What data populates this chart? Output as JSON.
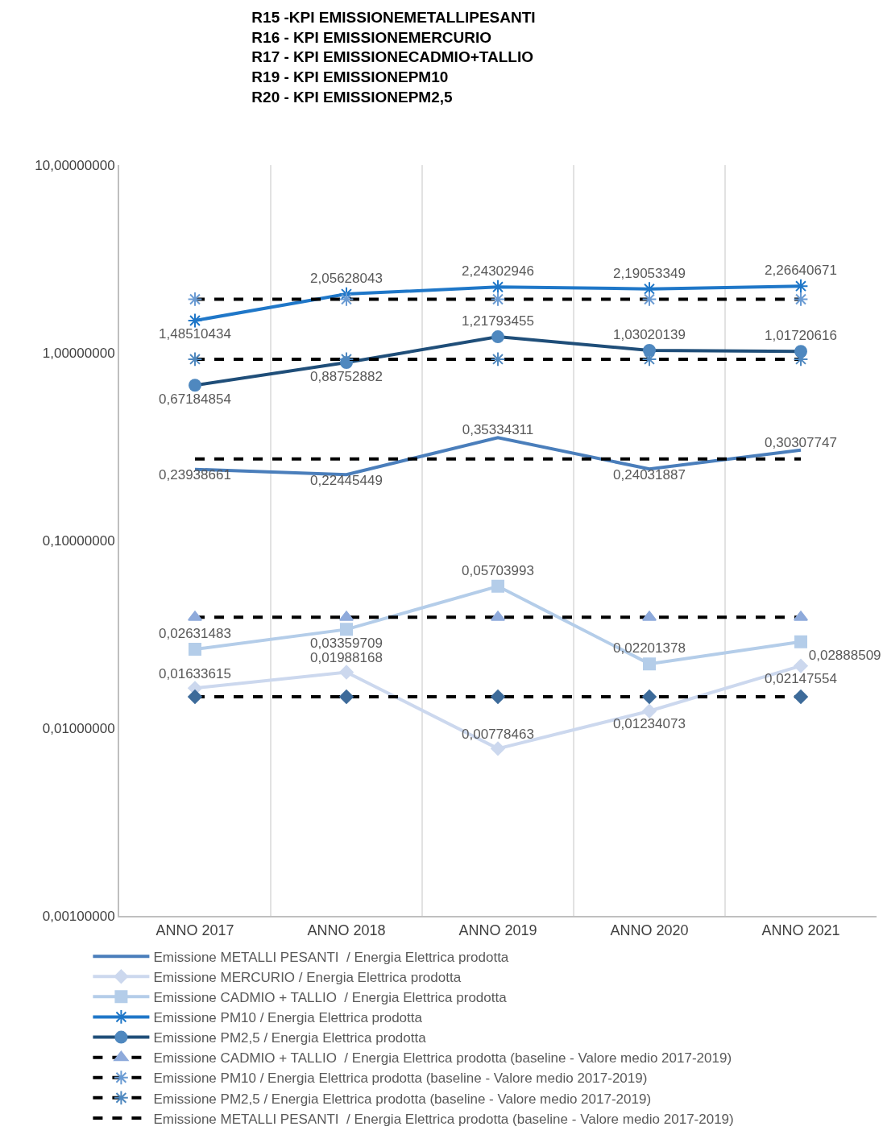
{
  "chart_data": {
    "type": "line",
    "title": "R15 -KPI EMISSIONEMETALLIPESANTI\nR16 - KPI EMISSIONEMERCURIO\nR17 - KPI EMISSIONECADMIO+TALLIO\nR19 - KPI EMISSIONEPM10\nR20 - KPI EMISSIONEPM2,5",
    "categories": [
      "ANNO 2017",
      "ANNO 2018",
      "ANNO 2019",
      "ANNO 2020",
      "ANNO 2021"
    ],
    "series": [
      {
        "name": "Emissione METALLI PESANTI  / Energia Elettrica prodotta",
        "color": "#4a7ebb",
        "marker": "none",
        "line_style": "solid",
        "values": [
          0.23938661,
          0.22445449,
          0.35334311,
          0.24031887,
          0.30307747
        ],
        "value_labels": [
          "0,23938661",
          "0,22445449",
          "0,35334311",
          "0,24031887",
          "0,30307747"
        ]
      },
      {
        "name": "Emissione MERCURIO / Energia Elettrica prodotta",
        "color": "#ccd8ee",
        "marker": "diamond",
        "line_style": "solid",
        "values": [
          0.01633615,
          0.01988168,
          0.00778463,
          0.01234073,
          0.02147554
        ],
        "value_labels": [
          "0,01633615",
          "0,01988168",
          "0,00778463",
          "0,01234073",
          "0,02147554"
        ]
      },
      {
        "name": "Emissione CADMIO + TALLIO  / Energia Elettrica prodotta",
        "color": "#b4cde9",
        "marker": "square",
        "line_style": "solid",
        "values": [
          0.02631483,
          0.03359709,
          0.05703993,
          0.02201378,
          0.02888509
        ],
        "value_labels": [
          "0,02631483",
          "0,03359709",
          "0,05703993",
          "0,02201378",
          "0,02888509"
        ]
      },
      {
        "name": "Emissione PM10 / Energia Elettrica prodotta",
        "color": "#1f77c8",
        "marker": "cross",
        "line_style": "solid",
        "values": [
          1.48510434,
          2.05628043,
          2.24302946,
          2.19053349,
          2.26640671
        ],
        "value_labels": [
          "1,48510434",
          "2,05628043",
          "2,24302946",
          "2,19053349",
          "2,26640671"
        ]
      },
      {
        "name": "Emissione PM2,5 / Energia Elettrica prodotta",
        "color": "#1f4e79",
        "colors": [
          "#4f88bf",
          "#4f88bf",
          "#4f88bf",
          "#4f88bf",
          "#4f88bf"
        ],
        "marker": "circle",
        "line_style": "solid",
        "values": [
          0.67184854,
          0.88752882,
          1.21793455,
          1.03020139,
          1.01720616
        ],
        "value_labels": [
          "0,67184854",
          "0,88752882",
          "1,21793455",
          "1,03020139",
          "1,01720616"
        ]
      },
      {
        "name": "Emissione CADMIO + TALLIO  / Energia Elettrica prodotta (baseline - Valore medio 2017-2019)",
        "color": "#000000",
        "colors": [
          "#8eaadb",
          "#8eaadb",
          "#8eaadb",
          "#8eaadb",
          "#8eaadb"
        ],
        "marker": "triangle",
        "line_style": "dashed",
        "values": [
          0.039,
          0.039,
          0.039,
          0.039,
          0.039
        ]
      },
      {
        "name": "Emissione PM10 / Energia Elettrica prodotta (baseline - Valore medio 2017-2019)",
        "color": "#000000",
        "colors": [
          "#6a9bd3",
          "#6a9bd3",
          "#6a9bd3",
          "#6a9bd3",
          "#6a9bd3"
        ],
        "marker": "cross",
        "line_style": "dashed",
        "values": [
          1.93,
          1.93,
          1.93,
          1.93,
          1.93
        ]
      },
      {
        "name": "Emissione PM2,5 / Energia Elettrica prodotta (baseline - Valore medio 2017-2019)",
        "color": "#000000",
        "colors": [
          "#4f88bf",
          "#4f88bf",
          "#4f88bf",
          "#4f88bf",
          "#4f88bf"
        ],
        "marker": "cross",
        "line_style": "dashed",
        "values": [
          0.925,
          0.925,
          0.925,
          0.925,
          0.925
        ]
      },
      {
        "name": "Emissione METALLI PESANTI  / Energia Elettrica prodotta (baseline - Valore medio 2017-2019)",
        "color": "#000000",
        "colors": [
          "#44709d",
          "#44709d",
          "#44709d",
          "#44709d",
          "#44709d"
        ],
        "marker": "none",
        "line_style": "dashed",
        "values": [
          0.272,
          0.272,
          0.272,
          0.272,
          0.272
        ]
      },
      {
        "color": "#000000",
        "colors": [
          "#3d6b9a",
          "#3d6b9a",
          "#3d6b9a",
          "#3d6b9a",
          "#3d6b9a"
        ],
        "marker": "diamond",
        "line_style": "dashed",
        "values": [
          0.0147,
          0.0147,
          0.0147,
          0.0147,
          0.0147
        ]
      }
    ],
    "log": true,
    "ylim": [
      0.001,
      10
    ],
    "yticks": [
      {
        "value": 0.001,
        "label": "0,00100000"
      },
      {
        "value": 0.01,
        "label": "0,01000000"
      },
      {
        "value": 0.1,
        "label": "0,10000000"
      },
      {
        "value": 1,
        "label": "1,00000000"
      },
      {
        "value": 10,
        "label": "10,00000000"
      }
    ],
    "grid": "x",
    "legend": "bottom"
  }
}
